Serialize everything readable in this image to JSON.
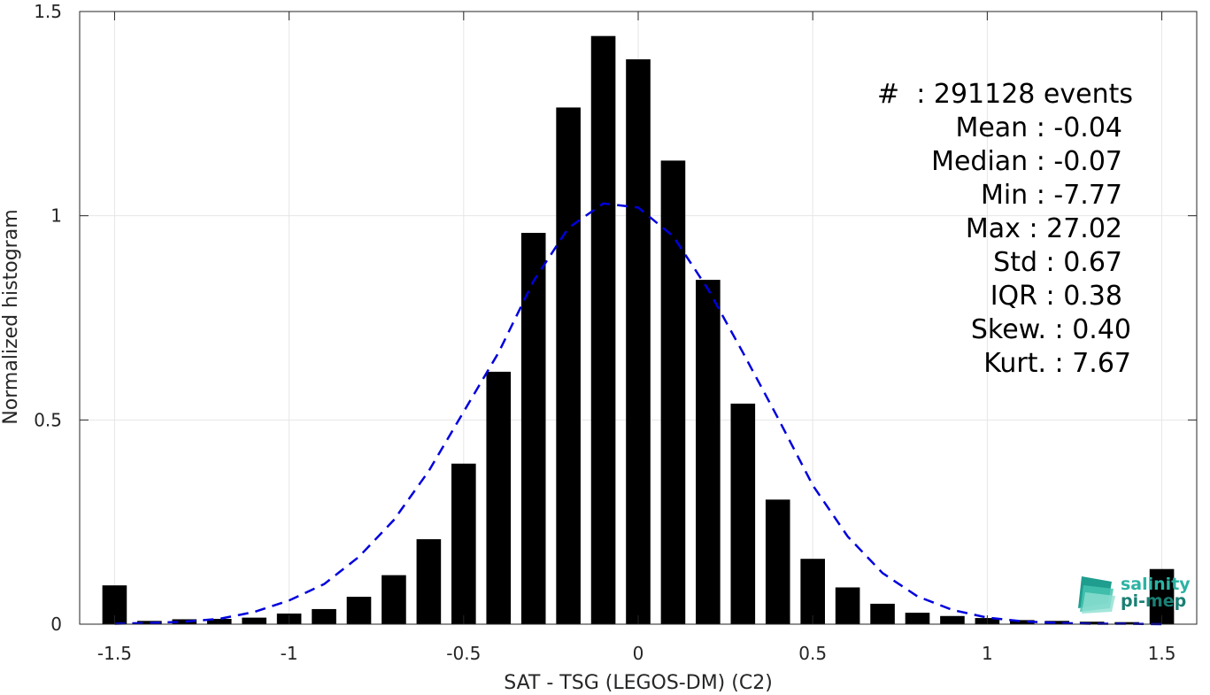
{
  "chart_data": {
    "type": "bar",
    "xlabel": "SAT - TSG (LEGOS-DM) (C2)",
    "ylabel": "Normalized histogram",
    "xlim": [
      -1.6,
      1.6
    ],
    "ylim": [
      0,
      1.5
    ],
    "xticks": [
      -1.5,
      -1,
      -0.5,
      0,
      0.5,
      1,
      1.5
    ],
    "xtick_labels": [
      "-1.5",
      "-1",
      "-0.5",
      "0",
      "0.5",
      "1",
      "1.5"
    ],
    "yticks": [
      0,
      0.5,
      1,
      1.5
    ],
    "ytick_labels": [
      "0",
      "0.5",
      "1",
      "1.5"
    ],
    "grid": true,
    "bar_color": "#000000",
    "bar_width": 0.07,
    "x": [
      -1.5,
      -1.4,
      -1.3,
      -1.2,
      -1.1,
      -1.0,
      -0.9,
      -0.8,
      -0.7,
      -0.6,
      -0.5,
      -0.4,
      -0.3,
      -0.2,
      -0.1,
      0.0,
      0.1,
      0.2,
      0.3,
      0.4,
      0.5,
      0.6,
      0.7,
      0.8,
      0.9,
      1.0,
      1.1,
      1.2,
      1.3,
      1.4,
      1.5
    ],
    "values": [
      0.095,
      0.008,
      0.012,
      0.013,
      0.016,
      0.026,
      0.037,
      0.067,
      0.12,
      0.208,
      0.393,
      0.618,
      0.958,
      1.265,
      1.44,
      1.383,
      1.135,
      0.843,
      0.54,
      0.305,
      0.16,
      0.09,
      0.05,
      0.028,
      0.02,
      0.015,
      0.01,
      0.008,
      0.006,
      0.005,
      0.135
    ],
    "fit_curve": {
      "style": "dashed",
      "color": "#0000dd",
      "x": [
        -1.5,
        -1.4,
        -1.3,
        -1.2,
        -1.1,
        -1.0,
        -0.9,
        -0.8,
        -0.7,
        -0.6,
        -0.5,
        -0.4,
        -0.3,
        -0.2,
        -0.1,
        0.0,
        0.1,
        0.2,
        0.3,
        0.4,
        0.5,
        0.6,
        0.7,
        0.8,
        0.9,
        1.0,
        1.1,
        1.2,
        1.3,
        1.4,
        1.5
      ],
      "y": [
        0.001,
        0.003,
        0.006,
        0.013,
        0.03,
        0.058,
        0.098,
        0.165,
        0.255,
        0.375,
        0.52,
        0.665,
        0.84,
        0.97,
        1.03,
        1.02,
        0.95,
        0.82,
        0.665,
        0.505,
        0.34,
        0.215,
        0.125,
        0.068,
        0.035,
        0.016,
        0.007,
        0.003,
        0.001,
        0.001,
        0.0
      ]
    }
  },
  "stats": [
    {
      "label": "#  ",
      "value": ": 291128 events"
    },
    {
      "label": "Mean ",
      "value": ": -0.04"
    },
    {
      "label": "Median ",
      "value": ": -0.07"
    },
    {
      "label": "Min ",
      "value": ": -7.77"
    },
    {
      "label": "Max ",
      "value": ": 27.02"
    },
    {
      "label": "Std ",
      "value": ": 0.67"
    },
    {
      "label": "IQR ",
      "value": ": 0.38"
    },
    {
      "label": "Skew. ",
      "value": ": 0.40"
    },
    {
      "label": "Kurt. ",
      "value": ": 7.67"
    }
  ],
  "logo": {
    "line1": "salinity",
    "line2": "pi-mep",
    "color1": "#2bb3a3",
    "color2": "#1a7f74"
  }
}
